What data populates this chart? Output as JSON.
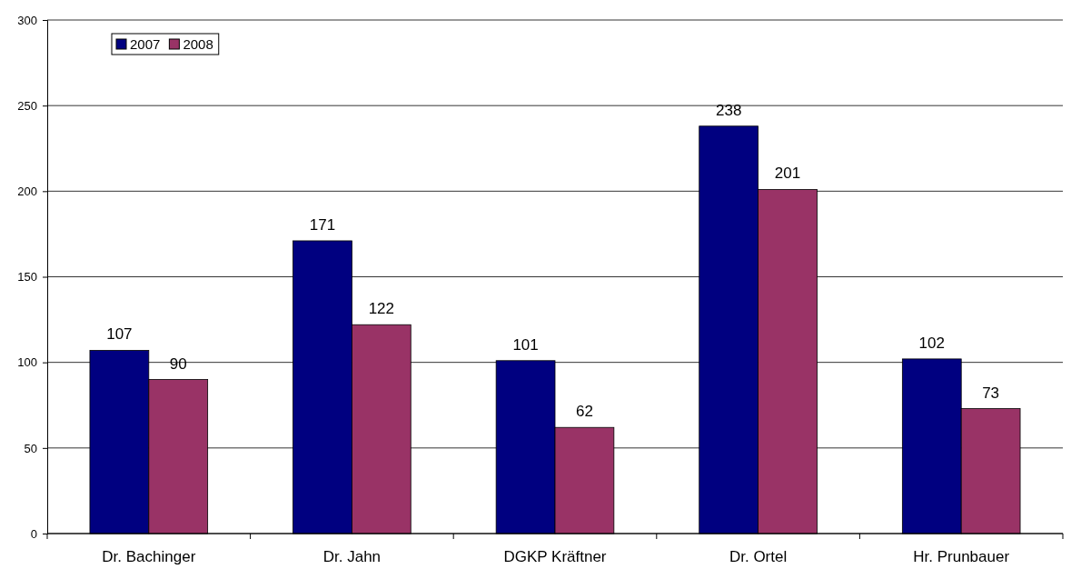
{
  "chart_data": {
    "type": "bar",
    "categories": [
      "Dr. Bachinger",
      "Dr. Jahn",
      "DGKP Kräftner",
      "Dr. Ortel",
      "Hr. Prunbauer"
    ],
    "series": [
      {
        "name": "2007",
        "color": "#000080",
        "values": [
          107,
          171,
          101,
          238,
          102
        ]
      },
      {
        "name": "2008",
        "color": "#993366",
        "values": [
          90,
          122,
          62,
          201,
          73
        ]
      }
    ],
    "ylim": [
      0,
      300
    ],
    "yticks": [
      0,
      50,
      100,
      150,
      200,
      250,
      300
    ],
    "grid": "y",
    "legend": "top left",
    "data_labels": true
  }
}
